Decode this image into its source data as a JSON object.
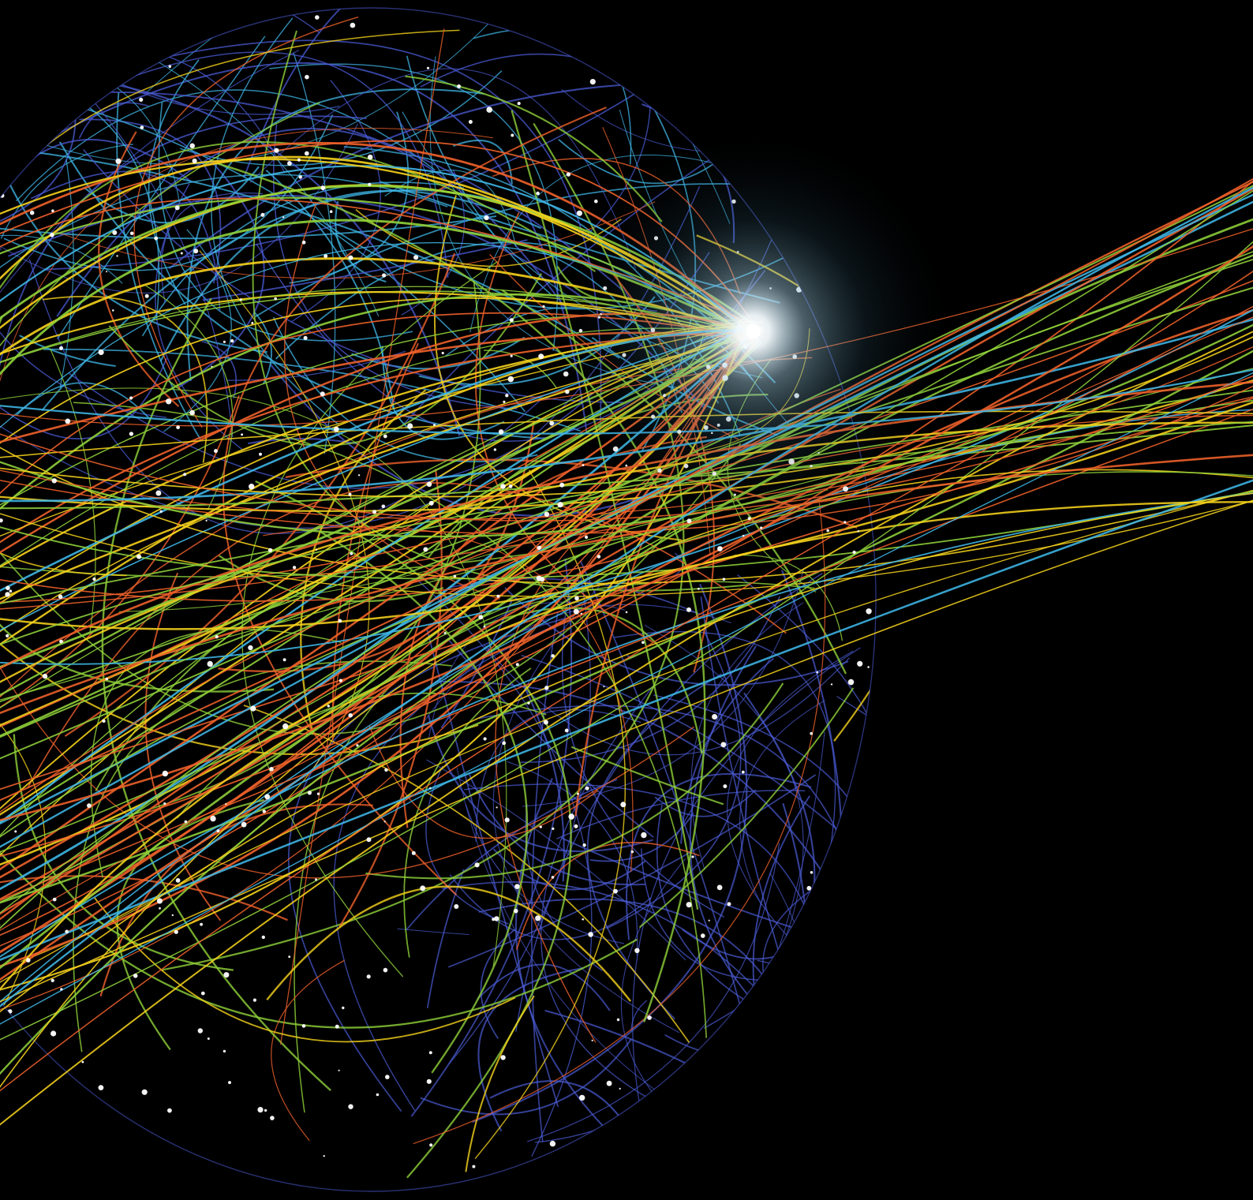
{
  "scene": {
    "subject": "network-globe",
    "background_color": "#000000",
    "glow_color": "#ffffff",
    "palette": {
      "blue": "#4a5bd4",
      "cyan": "#3fb6e6",
      "green": "#8fd13a",
      "yellow": "#f5d21c",
      "orange": "#f0622a",
      "dots": "#ffffff"
    }
  }
}
